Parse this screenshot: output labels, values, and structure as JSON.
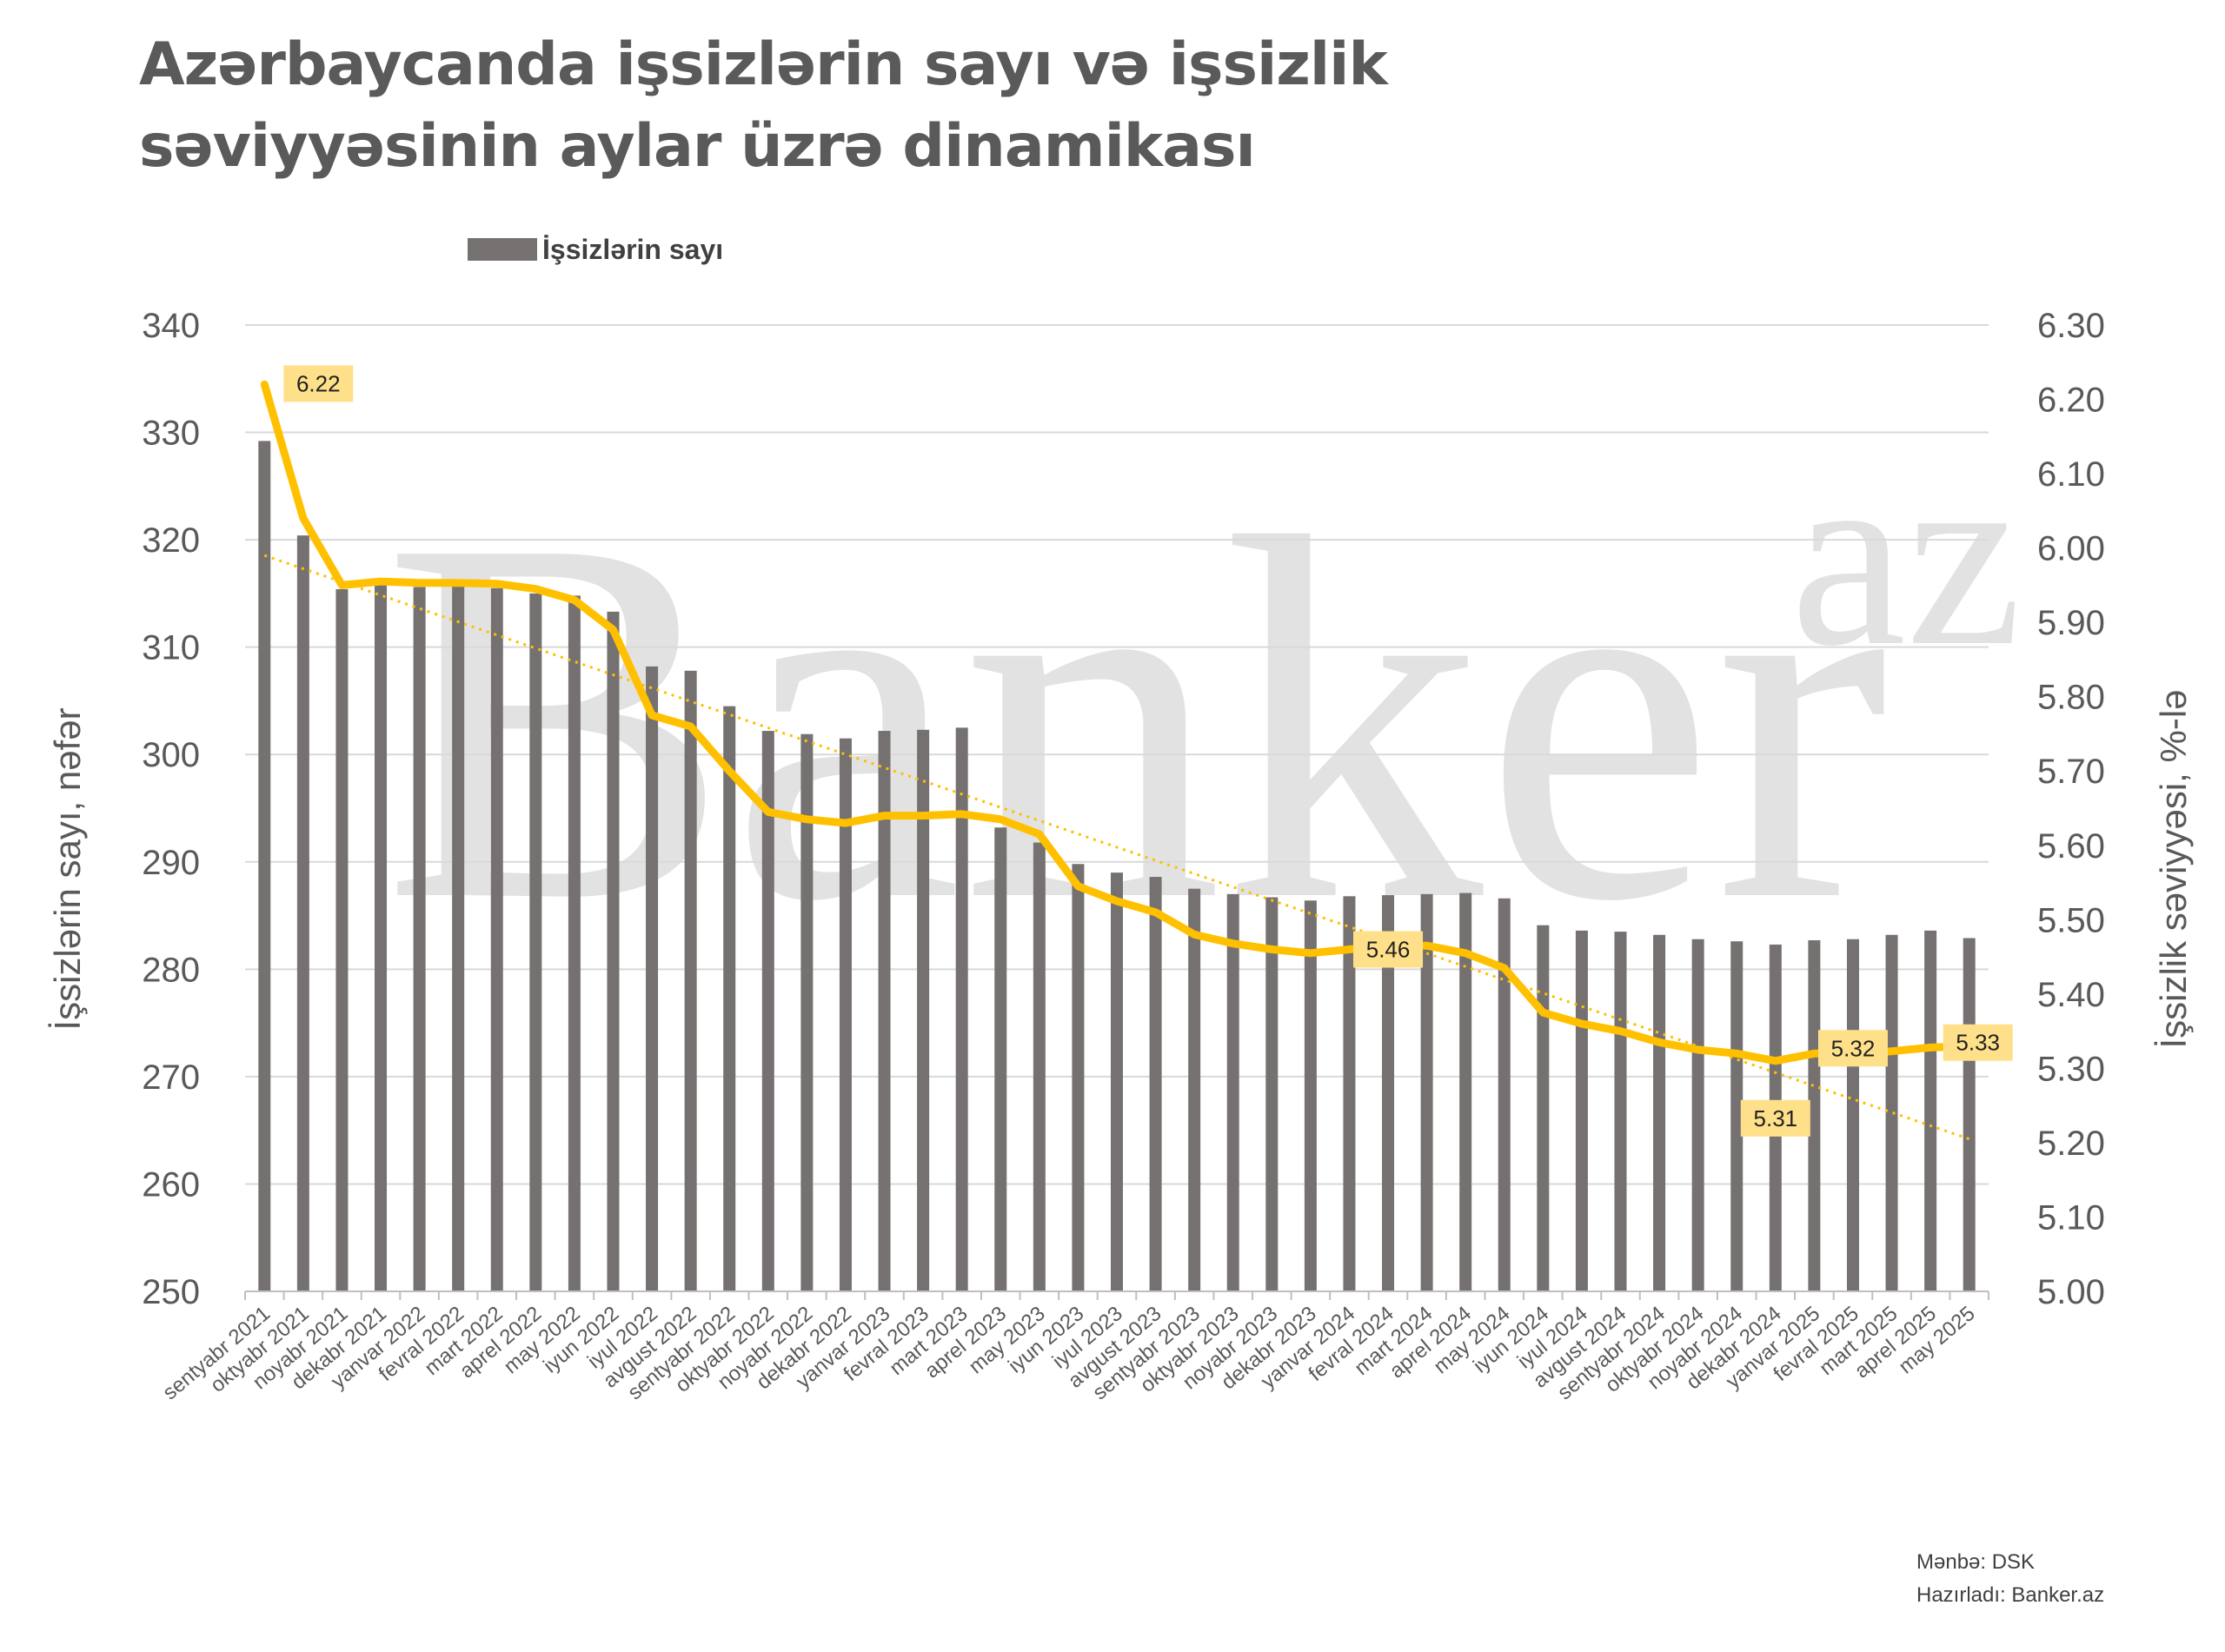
{
  "title_line1": "Azərbaycanda işsizlərin sayı və işsizlik",
  "title_line2": "səviyyəsinin aylar üzrə dinamikası",
  "watermark": {
    "main": "Banker",
    "suffix": "az"
  },
  "source_text": "Mənbə: DSK",
  "prepared_text": "Hazırladı: Banker.az",
  "colors": {
    "bar": "#767171",
    "line": "#ffc000",
    "trend": "#ffc000",
    "label_bg": "#ffe08a",
    "grid": "#d9d9d9"
  },
  "chart_data": {
    "type": "bar",
    "title": "Azərbaycanda işsizlərin sayı və işsizlik səviyyəsinin aylar üzrə dinamikası",
    "ylabel": "İşsizlərin sayı, nəfər",
    "y2label": "İşsizlik səviyyəsi, %-lə",
    "ylim": [
      250,
      340
    ],
    "y2lim": [
      5.0,
      6.3
    ],
    "yticks": [
      "250",
      "260",
      "270",
      "280",
      "290",
      "300",
      "310",
      "320",
      "330",
      "340"
    ],
    "y2ticks": [
      "5.00",
      "5.10",
      "5.20",
      "5.30",
      "5.40",
      "5.50",
      "5.60",
      "5.70",
      "5.80",
      "5.90",
      "6.00",
      "6.10",
      "6.20",
      "6.30"
    ],
    "legend": "top-left",
    "grid": true,
    "categories": [
      "sentyabr 2021",
      "oktyabr 2021",
      "noyabr 2021",
      "dekabr 2021",
      "yanvar 2022",
      "fevral 2022",
      "mart 2022",
      "aprel 2022",
      "may 2022",
      "iyun 2022",
      "iyul 2022",
      "avgust 2022",
      "sentyabr 2022",
      "oktyabr 2022",
      "noyabr 2022",
      "dekabr 2022",
      "yanvar 2023",
      "fevral 2023",
      "mart 2023",
      "aprel 2023",
      "may 2023",
      "iyun 2023",
      "iyul 2023",
      "avgust 2023",
      "sentyabr 2023",
      "oktyabr 2023",
      "noyabr 2023",
      "dekabr 2023",
      "yanvar 2024",
      "fevral 2024",
      "mart 2024",
      "aprel 2024",
      "may 2024",
      "iyun 2024",
      "iyul 2024",
      "avgust 2024",
      "sentyabr 2024",
      "oktyabr 2024",
      "noyabr 2024",
      "dekabr 2024",
      "yanvar 2025",
      "fevral 2025",
      "mart 2025",
      "aprel 2025",
      "may 2025"
    ],
    "series": [
      {
        "name": "İşsizlərin sayı",
        "type": "bar",
        "axis": "left",
        "values": [
          329.2,
          320.4,
          315.4,
          315.8,
          315.6,
          315.7,
          315.5,
          315.0,
          314.8,
          313.3,
          308.2,
          307.8,
          304.5,
          302.2,
          301.9,
          301.5,
          302.2,
          302.3,
          302.5,
          293.2,
          291.8,
          289.8,
          289.0,
          288.6,
          287.5,
          287.0,
          286.7,
          286.4,
          286.8,
          286.9,
          287.0,
          287.1,
          286.6,
          284.1,
          283.6,
          283.5,
          283.2,
          282.8,
          282.6,
          282.3,
          282.7,
          282.8,
          283.2,
          283.6,
          282.9
        ]
      },
      {
        "type": "line",
        "axis": "right",
        "values": [
          6.22,
          6.04,
          5.95,
          5.955,
          5.953,
          5.953,
          5.952,
          5.945,
          5.93,
          5.89,
          5.775,
          5.76,
          5.7,
          5.645,
          5.635,
          5.63,
          5.64,
          5.64,
          5.642,
          5.635,
          5.615,
          5.545,
          5.525,
          5.51,
          5.48,
          5.468,
          5.46,
          5.455,
          5.46,
          5.465,
          5.465,
          5.455,
          5.435,
          5.375,
          5.36,
          5.35,
          5.335,
          5.325,
          5.32,
          5.31,
          5.32,
          5.32,
          5.323,
          5.328,
          5.33
        ]
      },
      {
        "type": "trendline",
        "axis": "right",
        "dotted": true,
        "x": [
          "sentyabr 2021",
          "may 2025"
        ],
        "values": [
          5.99,
          5.205
        ]
      }
    ],
    "annotations": [
      {
        "text": "6.22",
        "category": "sentyabr 2021",
        "value": 6.22
      },
      {
        "text": "5.46",
        "category": "fevral 2024",
        "value": 5.46
      },
      {
        "text": "5.31",
        "category": "dekabr 2024",
        "value": 5.31
      },
      {
        "text": "5.32",
        "category": "fevral 2025",
        "value": 5.32
      },
      {
        "text": "5.33",
        "category": "may 2025",
        "value": 5.33
      }
    ]
  }
}
